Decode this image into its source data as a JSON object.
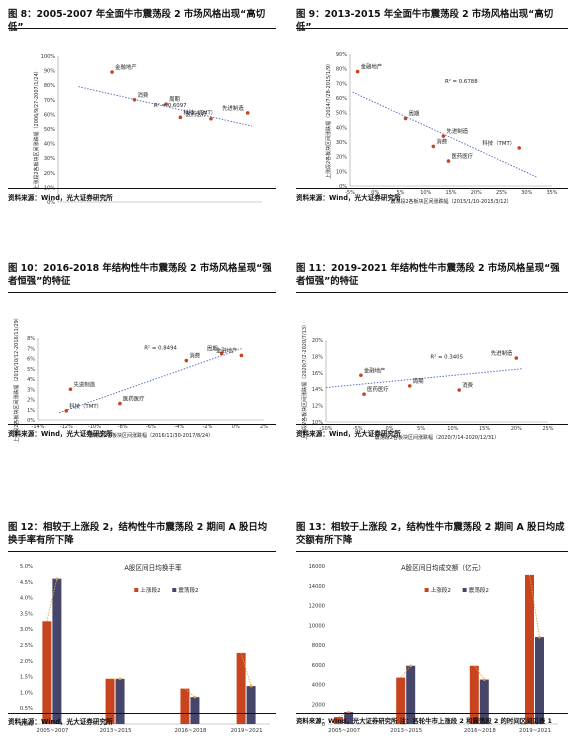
{
  "source_prefix": "资料来源：",
  "panels": [
    {
      "title": "图 8：2005-2007 年全面牛市震荡段 2 市场风格出现“高切低”",
      "source": "资料来源：Wind，光大证券研究所",
      "chart_data": {
        "type": "scatter",
        "xlabel": "震荡段2各板块区间涨跌幅（2007/1/25-2007/3/20）",
        "ylabel": "上涨段2各板块区间涨跌幅（2006/9/27-2007/1/24）",
        "xlim": [
          0,
          0.2
        ],
        "ylim": [
          0,
          1.0
        ],
        "xticks": [
          "0%",
          "5%",
          "10%",
          "15%",
          "20%"
        ],
        "yticks": [
          "0%",
          "10%",
          "20%",
          "30%",
          "40%",
          "50%",
          "60%",
          "70%",
          "80%",
          "90%",
          "100%"
        ],
        "points": [
          {
            "name": "金融地产",
            "x": 0.053,
            "y": 0.89
          },
          {
            "name": "消费",
            "x": 0.075,
            "y": 0.7
          },
          {
            "name": "周期",
            "x": 0.106,
            "y": 0.67
          },
          {
            "name": "科技（TMT）",
            "x": 0.12,
            "y": 0.58
          },
          {
            "name": "医药医疗",
            "x": 0.15,
            "y": 0.57
          },
          {
            "name": "先进制造",
            "x": 0.186,
            "y": 0.61
          }
        ],
        "r2": "R² = 0.6097",
        "trend": [
          [
            0.02,
            0.79
          ],
          [
            0.19,
            0.52
          ]
        ]
      }
    },
    {
      "title": "图 9：2013-2015 年全面牛市震荡段 2 市场风格出现“高切低”",
      "source": "资料来源：Wind，光大证券研究所",
      "chart_data": {
        "type": "scatter",
        "xlabel": "震荡段2各板块区间涨跌幅（2015/1/10-2015/3/12）",
        "ylabel": "上涨段2各板块区间涨跌幅（2014/7/28-2015/1/9）",
        "xlim": [
          -0.05,
          0.35
        ],
        "ylim": [
          0,
          0.9
        ],
        "xticks": [
          "-5%",
          "0%",
          "5%",
          "10%",
          "15%",
          "20%",
          "25%",
          "30%",
          "35%"
        ],
        "yticks": [
          "0%",
          "10%",
          "20%",
          "30%",
          "40%",
          "50%",
          "60%",
          "70%",
          "80%",
          "90%"
        ],
        "points": [
          {
            "name": "金融地产",
            "x": -0.035,
            "y": 0.78
          },
          {
            "name": "周期",
            "x": 0.06,
            "y": 0.46
          },
          {
            "name": "先进制造",
            "x": 0.135,
            "y": 0.34
          },
          {
            "name": "消费",
            "x": 0.115,
            "y": 0.27
          },
          {
            "name": "医药医疗",
            "x": 0.145,
            "y": 0.17
          },
          {
            "name": "科技（TMT）",
            "x": 0.285,
            "y": 0.26
          }
        ],
        "r2": "R² = 0.6788",
        "trend": [
          [
            -0.045,
            0.64
          ],
          [
            0.32,
            0.06
          ]
        ]
      }
    },
    {
      "title": "图 10：2016-2018 年结构性牛市震荡段 2 市场风格呈现“强者恒强”的特征",
      "source": "资料来源：Wind，光大证券研究所",
      "chart_data": {
        "type": "scatter",
        "xlabel": "震荡段2各板块区间涨跌幅（2016/11/30-2017/8/24）",
        "ylabel": "上涨段2各板块区间涨跌幅（2016/10/12-2016/11/29）",
        "xlim": [
          -0.14,
          0.02
        ],
        "ylim": [
          0,
          0.08
        ],
        "xticks": [
          "-14%",
          "-12%",
          "-10%",
          "-8%",
          "-6%",
          "-4%",
          "-2%",
          "0%",
          "2%"
        ],
        "yticks": [
          "0%",
          "1%",
          "2%",
          "3%",
          "4%",
          "5%",
          "6%",
          "7%",
          "8%"
        ],
        "points": [
          {
            "name": "周期",
            "x": -0.01,
            "y": 0.065
          },
          {
            "name": "金融地产",
            "x": 0.004,
            "y": 0.063
          },
          {
            "name": "消费",
            "x": -0.035,
            "y": 0.058
          },
          {
            "name": "先进制造",
            "x": -0.117,
            "y": 0.03
          },
          {
            "name": "医药医疗",
            "x": -0.082,
            "y": 0.016
          },
          {
            "name": "科技（TMT）",
            "x": -0.12,
            "y": 0.009
          }
        ],
        "r2": "R² = 0.8494",
        "trend": [
          [
            -0.125,
            0.007
          ],
          [
            0.005,
            0.07
          ]
        ]
      }
    },
    {
      "title": "图 11：2019-2021 年结构性牛市震荡段 2 市场风格呈现“强者恒强”的特征",
      "source": "资料来源：Wind，光大证券研究所",
      "chart_data": {
        "type": "scatter",
        "xlabel": "震荡段2各板块区间涨跌幅（2020/7/14-2020/12/31）",
        "ylabel": "上涨段2各板块区间涨跌幅（2020/7/2-2020/7/13）",
        "xlim": [
          -0.1,
          0.25
        ],
        "ylim": [
          0.1,
          0.2
        ],
        "xticks": [
          "-10%",
          "-5%",
          "0%",
          "5%",
          "10%",
          "15%",
          "20%",
          "25%"
        ],
        "yticks": [
          "10%",
          "12%",
          "14%",
          "16%",
          "18%",
          "20%"
        ],
        "points": [
          {
            "name": "先进制造",
            "x": 0.2,
            "y": 0.178
          },
          {
            "name": "金融地产",
            "x": -0.045,
            "y": 0.157
          },
          {
            "name": "周期",
            "x": 0.032,
            "y": 0.144
          },
          {
            "name": "消费",
            "x": 0.11,
            "y": 0.139
          },
          {
            "name": "医药医疗",
            "x": -0.04,
            "y": 0.134
          }
        ],
        "r2": "R² = 0.3405",
        "trend": [
          [
            -0.1,
            0.142
          ],
          [
            0.21,
            0.165
          ]
        ]
      }
    },
    {
      "title": "图 12：相较于上涨段 2，结构性牛市震荡段 2 期间 A 股日均换手率有所下降",
      "source": "资料来源：Wind，光大证券研究所",
      "chart_data": {
        "type": "bar",
        "title": "A股区间日均换手率",
        "categories": [
          "2005~2007",
          "2013~2015",
          "2016~2018",
          "2019~2021"
        ],
        "ylim": [
          0,
          0.05
        ],
        "yticks": [
          "0.0%",
          "0.5%",
          "1.0%",
          "1.5%",
          "2.0%",
          "2.5%",
          "3.0%",
          "3.5%",
          "4.0%",
          "4.5%",
          "5.0%"
        ],
        "series": [
          {
            "name": "上涨段2",
            "color": "#c8441f",
            "values": [
              0.0325,
              0.0143,
              0.0112,
              0.0225
            ]
          },
          {
            "name": "震荡段2",
            "color": "#46456a",
            "values": [
              0.046,
              0.0143,
              0.0085,
              0.012
            ]
          }
        ]
      }
    },
    {
      "title": "图 13：相较于上涨段 2，结构性牛市震荡段 2 期间 A 股日均成交额有所下降",
      "source": "资料来源：Wind，光大证券研究所",
      "note": "注：各轮牛市上涨段 2 和震荡段 2 的时间区间见表 1",
      "chart_data": {
        "type": "bar",
        "title": "A股区间日均成交额（亿元）",
        "categories": [
          "2005~2007",
          "2013~2015",
          "2016~2018",
          "2019~2021"
        ],
        "ylim": [
          0,
          16000
        ],
        "yticks": [
          "0",
          "2000",
          "4000",
          "6000",
          "8000",
          "10000",
          "12000",
          "14000",
          "16000"
        ],
        "series": [
          {
            "name": "上涨段2",
            "color": "#c8441f",
            "values": [
              700,
              4700,
              5900,
              15100
            ]
          },
          {
            "name": "震荡段2",
            "color": "#46456a",
            "values": [
              1200,
              5900,
              4500,
              8800
            ]
          }
        ]
      }
    }
  ]
}
